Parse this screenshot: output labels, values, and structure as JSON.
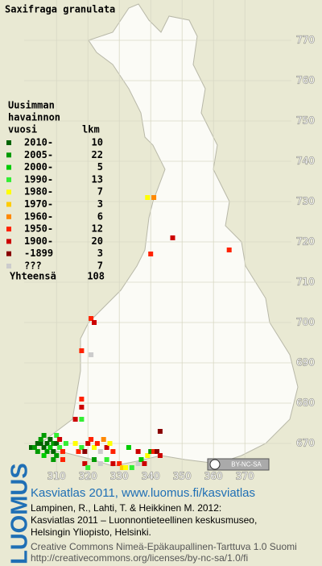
{
  "title": "Saxifraga granulata",
  "legend": {
    "heading": [
      "Uusimman",
      "havainnon"
    ],
    "period_header": "vuosi",
    "count_header": "lkm",
    "rows": [
      {
        "label": "2010-",
        "count": 10,
        "color": "#006400"
      },
      {
        "label": "2005-",
        "count": 22,
        "color": "#009a00"
      },
      {
        "label": "2000-",
        "count": 5,
        "color": "#00cc00"
      },
      {
        "label": "1990-",
        "count": 13,
        "color": "#33ee33"
      },
      {
        "label": "1980-",
        "count": 7,
        "color": "#ffff00"
      },
      {
        "label": "1970-",
        "count": 3,
        "color": "#ffcc00"
      },
      {
        "label": "1960-",
        "count": 6,
        "color": "#ff8800"
      },
      {
        "label": "1950-",
        "count": 12,
        "color": "#ff2200"
      },
      {
        "label": "1900-",
        "count": 20,
        "color": "#cc0000"
      },
      {
        "label": "-1899",
        "count": 3,
        "color": "#880000"
      },
      {
        "label": "???",
        "count": 7,
        "color": "#cccccc"
      }
    ],
    "total_label": "Yhteensä",
    "total": 108
  },
  "map": {
    "xlim": [
      302,
      372
    ],
    "ylim": [
      662,
      780
    ],
    "xticks": [
      310,
      320,
      330,
      340,
      350,
      360,
      370
    ],
    "yticks": [
      670,
      680,
      690,
      700,
      710,
      720,
      730,
      740,
      750,
      760,
      770
    ],
    "squares": [
      [
        339,
        731,
        4
      ],
      [
        341,
        731,
        6
      ],
      [
        347,
        721,
        8
      ],
      [
        340,
        717,
        7
      ],
      [
        365,
        718,
        7
      ],
      [
        321,
        701,
        7
      ],
      [
        322,
        700,
        8
      ],
      [
        318,
        693,
        7
      ],
      [
        321,
        692,
        10
      ],
      [
        318,
        681,
        7
      ],
      [
        318,
        679,
        8
      ],
      [
        316,
        676,
        8
      ],
      [
        318,
        676,
        3
      ],
      [
        343,
        673,
        9
      ],
      [
        302,
        669,
        0
      ],
      [
        303,
        669,
        1
      ],
      [
        304,
        670,
        0
      ],
      [
        305,
        670,
        0
      ],
      [
        305,
        671,
        1
      ],
      [
        306,
        672,
        1
      ],
      [
        306,
        669,
        0
      ],
      [
        307,
        670,
        0
      ],
      [
        307,
        668,
        1
      ],
      [
        308,
        671,
        0
      ],
      [
        308,
        669,
        2
      ],
      [
        309,
        670,
        1
      ],
      [
        309,
        668,
        0
      ],
      [
        310,
        672,
        3
      ],
      [
        310,
        670,
        0
      ],
      [
        310,
        667,
        1
      ],
      [
        311,
        669,
        3
      ],
      [
        311,
        671,
        8
      ],
      [
        312,
        668,
        7
      ],
      [
        313,
        670,
        3
      ],
      [
        306,
        667,
        2
      ],
      [
        304,
        668,
        1
      ],
      [
        312,
        666,
        7
      ],
      [
        309,
        666,
        1
      ],
      [
        316,
        670,
        4
      ],
      [
        317,
        668,
        7
      ],
      [
        318,
        669,
        3
      ],
      [
        319,
        668,
        9
      ],
      [
        320,
        670,
        8
      ],
      [
        321,
        671,
        7
      ],
      [
        322,
        669,
        4
      ],
      [
        323,
        670,
        7
      ],
      [
        324,
        668,
        10
      ],
      [
        325,
        671,
        6
      ],
      [
        326,
        669,
        8
      ],
      [
        327,
        670,
        4
      ],
      [
        328,
        668,
        7
      ],
      [
        319,
        665,
        8
      ],
      [
        320,
        664,
        3
      ],
      [
        322,
        666,
        1
      ],
      [
        324,
        665,
        10
      ],
      [
        326,
        666,
        3
      ],
      [
        328,
        665,
        8
      ],
      [
        330,
        665,
        7
      ],
      [
        331,
        664,
        5
      ],
      [
        332,
        664,
        4
      ],
      [
        334,
        664,
        3
      ],
      [
        336,
        665,
        10
      ],
      [
        337,
        666,
        2
      ],
      [
        338,
        665,
        8
      ],
      [
        339,
        667,
        4
      ],
      [
        340,
        668,
        1
      ],
      [
        341,
        668,
        7
      ],
      [
        342,
        668,
        9
      ],
      [
        343,
        667,
        8
      ],
      [
        336,
        668,
        8
      ],
      [
        333,
        669,
        2
      ]
    ]
  },
  "footer": {
    "logo": "LUOMUS",
    "heading": "Kasviatlas 2011, www.luomus.fi/kasviatlas",
    "citation": [
      "Lampinen, R., Lahti, T. & Heikkinen M. 2012:",
      "Kasviatlas 2011 – Luonnontieteellinen keskusmuseo,",
      "Helsingin Yliopisto, Helsinki."
    ],
    "license": [
      "Creative Commons Nimeä-Epäkaupallinen-Tarttuva 1.0 Suomi",
      "http://creativecommons.org/licenses/by-nc-sa/1.0/fi"
    ],
    "badge": "BY-NC-SA"
  }
}
